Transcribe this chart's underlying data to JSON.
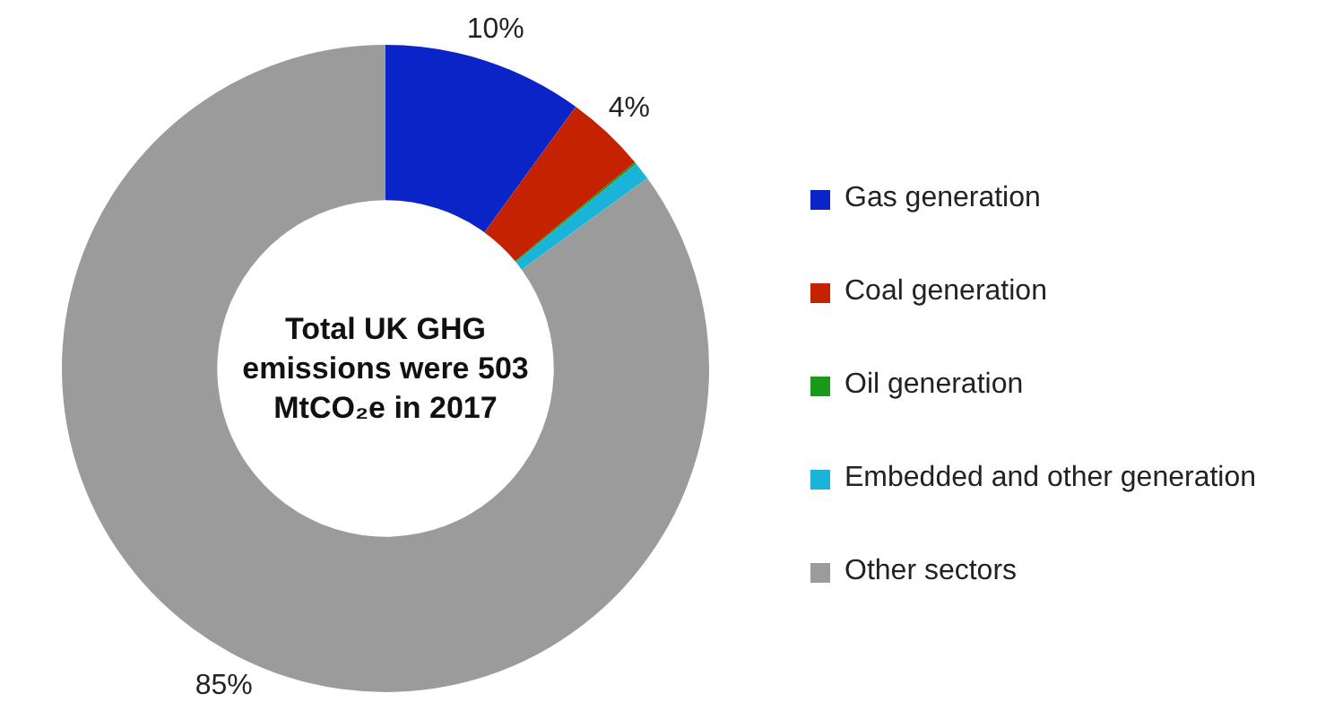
{
  "chart_data": {
    "type": "donut",
    "categories": [
      "Gas generation",
      "Coal generation",
      "Oil generation",
      "Embedded and other generation",
      "Other sectors"
    ],
    "values": [
      10,
      4,
      0.1,
      0.9,
      85
    ],
    "colors": [
      "#0a24c8",
      "#c42200",
      "#1a9a1a",
      "#19b4d8",
      "#9b9b9b"
    ],
    "value_labels": [
      "10%",
      "4%",
      null,
      null,
      "85%"
    ],
    "annotations": [
      "Total UK GHG emissions were 503 MtCO₂e in 2017"
    ],
    "legend": "right"
  }
}
